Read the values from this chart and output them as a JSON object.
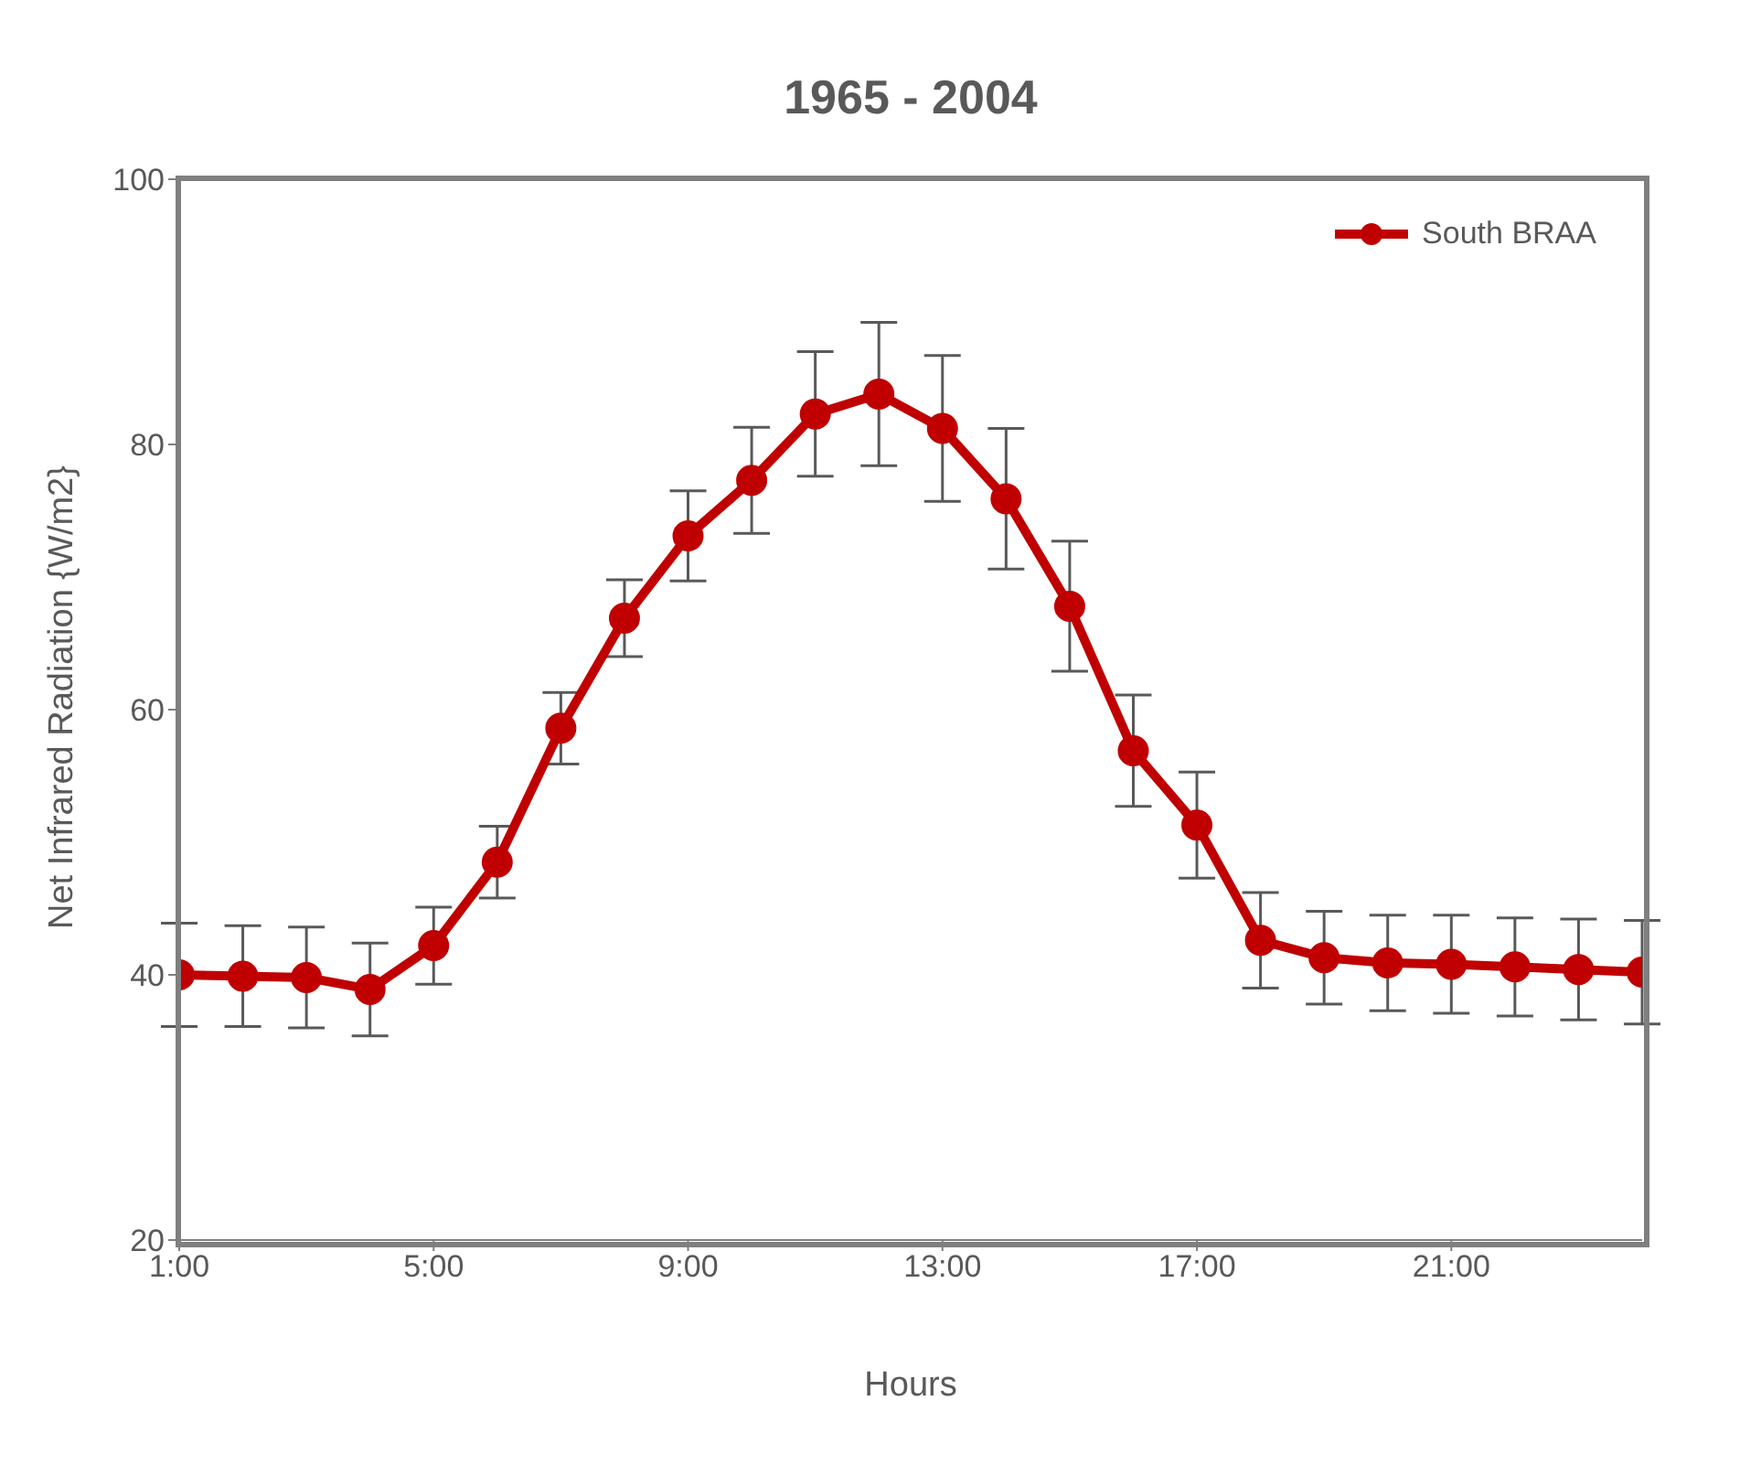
{
  "chart_data": {
    "type": "line",
    "title": "1965 - 2004",
    "xlabel": "Hours",
    "ylabel": "Net Infrared Radiation {W/m2}",
    "x": [
      1,
      2,
      3,
      4,
      5,
      6,
      7,
      8,
      9,
      10,
      11,
      12,
      13,
      14,
      15,
      16,
      17,
      18,
      19,
      20,
      21,
      22,
      23,
      24
    ],
    "series": [
      {
        "name": "South BRAA",
        "color": "#c00000",
        "values": [
          40.0,
          39.9,
          39.8,
          38.9,
          42.2,
          48.5,
          58.6,
          66.9,
          73.1,
          77.3,
          82.3,
          83.8,
          81.2,
          75.9,
          67.8,
          56.9,
          51.3,
          42.6,
          41.3,
          40.9,
          40.8,
          40.6,
          40.4,
          40.2
        ],
        "errors": [
          3.9,
          3.8,
          3.8,
          3.5,
          2.9,
          2.7,
          2.7,
          2.9,
          3.4,
          4.0,
          4.7,
          5.4,
          5.5,
          5.3,
          4.9,
          4.2,
          4.0,
          3.6,
          3.5,
          3.6,
          3.7,
          3.7,
          3.8,
          3.9
        ]
      }
    ],
    "xlim": [
      1,
      24
    ],
    "xticks": [
      {
        "value": 1,
        "label": "1:00"
      },
      {
        "value": 5,
        "label": "5:00"
      },
      {
        "value": 9,
        "label": "9:00"
      },
      {
        "value": 13,
        "label": "13:00"
      },
      {
        "value": 17,
        "label": "17:00"
      },
      {
        "value": 21,
        "label": "21:00"
      }
    ],
    "ylim": [
      20,
      100
    ],
    "yticks": [
      20,
      40,
      60,
      80,
      100
    ],
    "legend": "top right",
    "marker": "circle",
    "line_style": "solid",
    "grid": false
  }
}
